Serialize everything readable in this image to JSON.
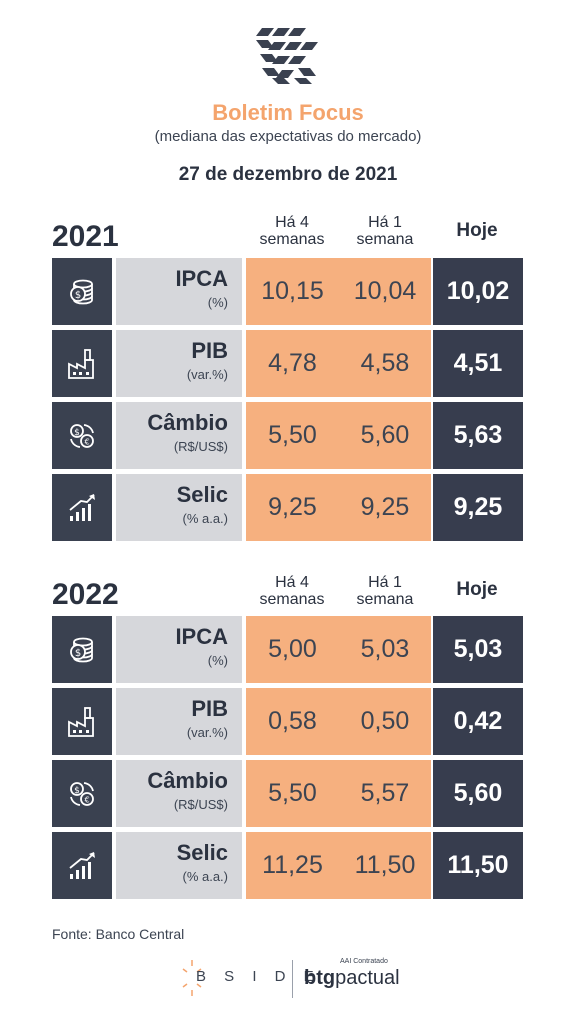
{
  "header": {
    "title": "Boletim Focus",
    "subtitle": "(mediana das expectativas do mercado)",
    "date": "27 de dezembro de 2021"
  },
  "columns": {
    "h4_line1": "Há 4",
    "h4_line2": "semanas",
    "h1_line1": "Há 1",
    "h1_line2": "semana",
    "hoje": "Hoje"
  },
  "y2021": {
    "year": "2021",
    "rows": [
      {
        "name": "IPCA",
        "unit": "(%)",
        "h4": "10,15",
        "h1": "10,04",
        "hoje": "10,02",
        "icon": "coins-icon"
      },
      {
        "name": "PIB",
        "unit": "(var.%)",
        "h4": "4,78",
        "h1": "4,58",
        "hoje": "4,51",
        "icon": "factory-icon"
      },
      {
        "name": "Câmbio",
        "unit": "(R$/US$)",
        "h4": "5,50",
        "h1": "5,60",
        "hoje": "5,63",
        "icon": "exchange-icon"
      },
      {
        "name": "Selic",
        "unit": "(% a.a.)",
        "h4": "9,25",
        "h1": "9,25",
        "hoje": "9,25",
        "icon": "growth-chart-icon"
      }
    ]
  },
  "y2022": {
    "year": "2022",
    "rows": [
      {
        "name": "IPCA",
        "unit": "(%)",
        "h4": "5,00",
        "h1": "5,03",
        "hoje": "5,03",
        "icon": "coins-icon"
      },
      {
        "name": "PIB",
        "unit": "(var.%)",
        "h4": "0,58",
        "h1": "0,50",
        "hoje": "0,42",
        "icon": "factory-icon"
      },
      {
        "name": "Câmbio",
        "unit": "(R$/US$)",
        "h4": "5,50",
        "h1": "5,57",
        "hoje": "5,60",
        "icon": "exchange-icon"
      },
      {
        "name": "Selic",
        "unit": "(% a.a.)",
        "h4": "11,25",
        "h1": "11,50",
        "hoje": "11,50",
        "icon": "growth-chart-icon"
      }
    ]
  },
  "footer": {
    "source": "Fonte: Banco Central",
    "bside": "B S I D E",
    "aai": "AAI Contratado",
    "btg_bold": "btg",
    "btg_rest": "pactual"
  },
  "colors": {
    "accent": "#f4a46d",
    "dark": "#373d4e",
    "orange_cell": "#f6b07f",
    "label_cell": "#d6d7db"
  }
}
